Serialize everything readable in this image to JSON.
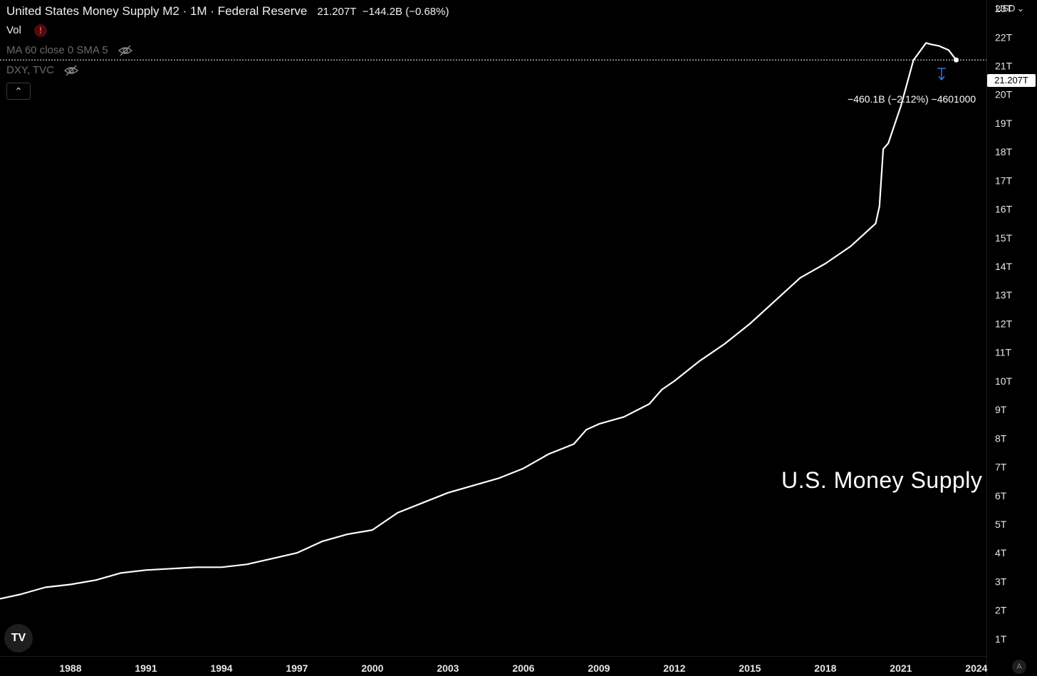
{
  "legend": {
    "title": "United States Money Supply M2 · 1M · Federal Reserve",
    "value": "21.207T",
    "change": "−144.2B (−0.68%)",
    "vol_label": "Vol",
    "warn_glyph": "!",
    "ma_label": "MA 60 close 0 SMA 5",
    "dxy_label": "DXY, TVC",
    "collapse_glyph": "⌃"
  },
  "scale": {
    "currency": "USD",
    "currency_caret": "⌄",
    "last_price": "21.207T",
    "auto_label": "A"
  },
  "measure": {
    "label": "−460.1B (−2.12%) −4601000"
  },
  "watermark": "U.S. Money Supply",
  "logo": "TV",
  "colors": {
    "background": "#000000",
    "line": "#ffffff",
    "axis_text": "#e6e6e6",
    "muted_text": "#6b6b6b",
    "measure_accent": "#4a8cff"
  },
  "chart_data": {
    "type": "line",
    "title": "United States Money Supply M2 · 1M · Federal Reserve",
    "xlabel": "",
    "ylabel": "",
    "x_ticks": [
      "1988",
      "1991",
      "1994",
      "1997",
      "2000",
      "2003",
      "2006",
      "2009",
      "2012",
      "2015",
      "2018",
      "2021",
      "2024"
    ],
    "y_ticks": [
      "1T",
      "2T",
      "3T",
      "4T",
      "5T",
      "6T",
      "7T",
      "8T",
      "9T",
      "10T",
      "11T",
      "12T",
      "13T",
      "14T",
      "15T",
      "16T",
      "17T",
      "18T",
      "19T",
      "20T",
      "21T",
      "22T",
      "23T"
    ],
    "xlim": [
      1985.2,
      2024.4
    ],
    "ylim": [
      0.4,
      23.3
    ],
    "y_unit": "T",
    "grid": false,
    "series": [
      {
        "name": "",
        "x": [
          1985.2,
          1986.0,
          1987.0,
          1988.0,
          1989.0,
          1990.0,
          1991.0,
          1992.0,
          1993.0,
          1994.0,
          1995.0,
          1996.0,
          1997.0,
          1998.0,
          1999.0,
          2000.0,
          2001.0,
          2002.0,
          2003.0,
          2004.0,
          2005.0,
          2006.0,
          2007.0,
          2008.0,
          2008.5,
          2009.0,
          2010.0,
          2011.0,
          2011.5,
          2012.0,
          2013.0,
          2014.0,
          2015.0,
          2016.0,
          2017.0,
          2018.0,
          2019.0,
          2020.0,
          2020.15,
          2020.3,
          2020.5,
          2021.0,
          2021.5,
          2022.0,
          2022.2,
          2022.5,
          2022.9,
          2023.2
        ],
        "y": [
          2.4,
          2.55,
          2.8,
          2.9,
          3.05,
          3.3,
          3.4,
          3.45,
          3.5,
          3.5,
          3.6,
          3.8,
          4.0,
          4.4,
          4.65,
          4.8,
          5.4,
          5.75,
          6.1,
          6.35,
          6.6,
          6.95,
          7.45,
          7.8,
          8.3,
          8.5,
          8.75,
          9.2,
          9.7,
          10.0,
          10.7,
          11.3,
          12.0,
          12.8,
          13.6,
          14.1,
          14.7,
          15.5,
          16.1,
          18.1,
          18.3,
          19.6,
          21.2,
          21.8,
          21.75,
          21.7,
          21.55,
          21.207
        ]
      }
    ],
    "last_value": 21.207,
    "annotation": "U.S. Money Supply"
  }
}
